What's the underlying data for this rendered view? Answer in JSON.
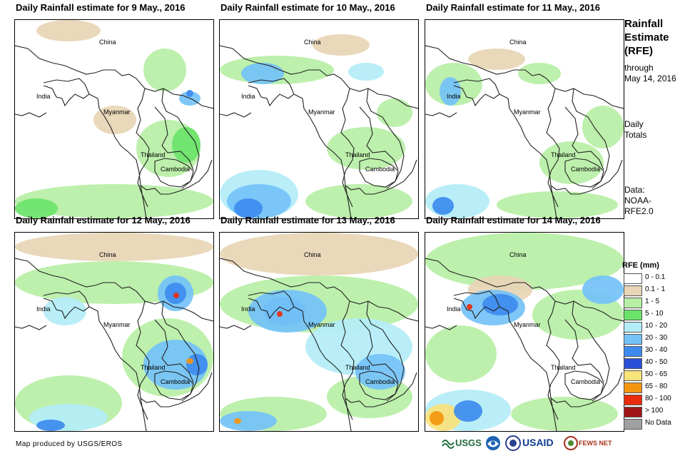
{
  "panels": [
    {
      "title": "Daily Rainfall estimate for 9 May., 2016",
      "labels": {
        "china": "China",
        "india": "India",
        "myanmar": "Myanmar",
        "thailand": "Thailand",
        "cambodia": "Cambodia"
      }
    },
    {
      "title": "Daily Rainfall estimate for 10 May., 2016",
      "labels": {
        "china": "China",
        "india": "India",
        "myanmar": "Myanmar",
        "thailand": "Thailand",
        "cambodia": "Cambodia"
      }
    },
    {
      "title": "Daily Rainfall estimate for 11 May., 2016",
      "labels": {
        "china": "China",
        "india": "India",
        "myanmar": "Myanmar",
        "thailand": "Thailand",
        "cambodia": "Cambodia"
      }
    },
    {
      "title": "Daily Rainfall estimate for 12 May., 2016",
      "labels": {
        "china": "China",
        "india": "India",
        "myanmar": "Myanmar",
        "thailand": "Thailand",
        "cambodia": "Cambodia"
      }
    },
    {
      "title": "Daily Rainfall estimate for 13 May., 2016",
      "labels": {
        "china": "China",
        "india": "India",
        "myanmar": "Myanmar",
        "thailand": "Thailand",
        "cambodia": "Cambodia"
      }
    },
    {
      "title": "Daily Rainfall estimate for 14 May., 2016",
      "labels": {
        "china": "China",
        "india": "India",
        "myanmar": "Myanmar",
        "thailand": "Thailand",
        "cambodia": "Cambodia"
      }
    }
  ],
  "side": {
    "title_lines": [
      "Rainfall",
      "Estimate",
      "(RFE)"
    ],
    "through_lines": [
      "through",
      "May 14, 2016"
    ],
    "daily_lines": [
      "Daily",
      "Totals"
    ],
    "data_lines": [
      "Data:",
      "NOAA-",
      "RFE2.0"
    ]
  },
  "legend": {
    "title": "RFE (mm)",
    "items": [
      {
        "label": "0 - 0.1",
        "color": "#ffffff"
      },
      {
        "label": "0.1 - 1",
        "color": "#e8d5b5"
      },
      {
        "label": "1 - 5",
        "color": "#b7efa5"
      },
      {
        "label": "5 - 10",
        "color": "#6be36a"
      },
      {
        "label": "10 - 20",
        "color": "#b3edf7"
      },
      {
        "label": "20 - 30",
        "color": "#74c2f7"
      },
      {
        "label": "30 - 40",
        "color": "#3d8bef"
      },
      {
        "label": "40 - 50",
        "color": "#2a4fd6"
      },
      {
        "label": "50 - 65",
        "color": "#f8e27a"
      },
      {
        "label": "65 - 80",
        "color": "#f4960e"
      },
      {
        "label": "80 - 100",
        "color": "#e82c0c"
      },
      {
        "label": "> 100",
        "color": "#a11616"
      },
      {
        "label": "No Data",
        "color": "#a0a0a0"
      }
    ]
  },
  "credit": "Map produced by USGS/EROS",
  "logos": {
    "usgs": "USGS",
    "usaid": "USAID",
    "fewsnet": "FEWS NET"
  }
}
